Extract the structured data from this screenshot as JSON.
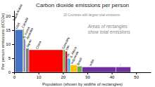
{
  "chart_data": {
    "type": "variwide",
    "title": "Carbon dioxide emissions per person",
    "subtitle": "15 Countries with largest total emissions",
    "annotation": "Areas of rectangles\nshow total emissions",
    "xlabel": "Population (shown by widths of rectangles)",
    "ylabel": "Per person emissions (tCO2e)",
    "categories": [
      "Saudi Arabia",
      "USA",
      "Canada",
      "S. Korea",
      "Australia",
      "Japan",
      "China",
      "Germany",
      "Iran",
      "UK",
      "S. Africa",
      "Indonesia",
      "Brazil",
      "India",
      "..."
    ],
    "x": [
      0.0,
      0.35,
      3.65,
      4.03,
      4.55,
      4.81,
      6.08,
      20.08,
      20.92,
      21.77,
      22.45,
      23.05,
      25.79,
      27.94,
      41.74
    ],
    "widths": [
      0.35,
      3.3,
      0.38,
      0.52,
      0.26,
      1.27,
      14.0,
      0.84,
      0.85,
      0.68,
      0.6,
      2.74,
      2.15,
      13.8,
      6.0
    ],
    "values": [
      18.0,
      15.2,
      15.5,
      11.8,
      11.4,
      8.5,
      8.0,
      8.0,
      7.5,
      5.0,
      4.8,
      2.6,
      2.2,
      1.9,
      1.9
    ],
    "colors": [
      "#c8102e",
      "#4472c4",
      "#70ad47",
      "#7030a0",
      "#00b0f0",
      "#808080",
      "#ff0000",
      "#70ad47",
      "#c8102e",
      "#4472c4",
      "#00b0f0",
      "#ffc000",
      "#70ad47",
      "#7030a0",
      "#7030a0"
    ],
    "xlim": [
      0,
      56
    ],
    "ylim": [
      0,
      22
    ],
    "xticks": [
      0,
      10,
      20,
      30,
      40,
      50
    ],
    "yticks": [
      0,
      5,
      10,
      15,
      20
    ],
    "grid": false
  }
}
